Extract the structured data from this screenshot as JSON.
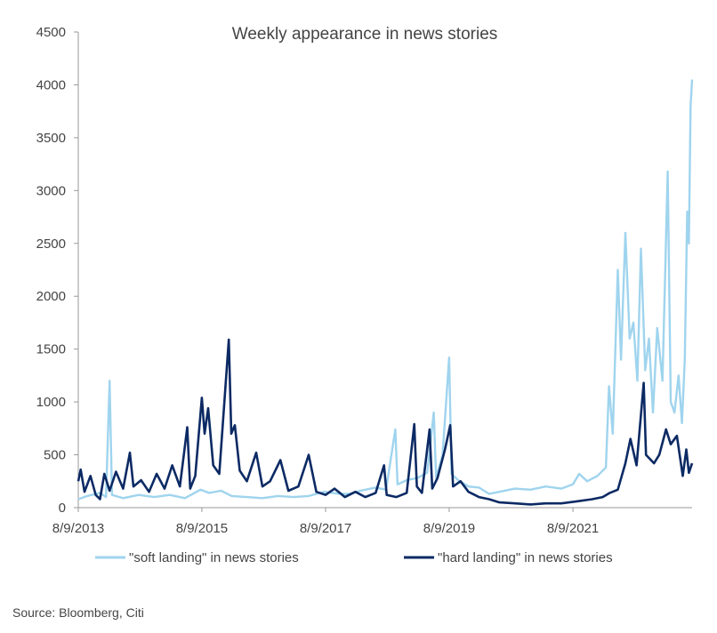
{
  "chart_data": {
    "type": "line",
    "title": "Weekly appearance in news stories",
    "xlabel": "",
    "ylabel": "",
    "ylim": [
      0,
      4500
    ],
    "y_ticks": [
      0,
      500,
      1000,
      1500,
      2000,
      2500,
      3000,
      3500,
      4000,
      4500
    ],
    "x_ticks": [
      "8/9/2013",
      "8/9/2015",
      "8/9/2017",
      "8/9/2019",
      "8/9/2021"
    ],
    "x_range": [
      "2013-08-09",
      "2023-07-14"
    ],
    "grid": false,
    "legend_position": "bottom",
    "series": [
      {
        "name": "\"soft landing\" in news stories",
        "color": "#9fd4ee",
        "points": [
          [
            "2013-08-09",
            80
          ],
          [
            "2013-10-01",
            110
          ],
          [
            "2013-12-15",
            140
          ],
          [
            "2014-01-20",
            100
          ],
          [
            "2014-02-10",
            1200
          ],
          [
            "2014-02-24",
            120
          ],
          [
            "2014-05-01",
            90
          ],
          [
            "2014-08-01",
            120
          ],
          [
            "2014-11-01",
            100
          ],
          [
            "2015-02-01",
            120
          ],
          [
            "2015-05-01",
            90
          ],
          [
            "2015-08-01",
            170
          ],
          [
            "2015-09-20",
            140
          ],
          [
            "2015-12-01",
            160
          ],
          [
            "2016-02-01",
            110
          ],
          [
            "2016-05-01",
            100
          ],
          [
            "2016-08-01",
            90
          ],
          [
            "2016-11-01",
            110
          ],
          [
            "2017-02-01",
            100
          ],
          [
            "2017-05-01",
            110
          ],
          [
            "2017-08-01",
            150
          ],
          [
            "2017-11-01",
            130
          ],
          [
            "2018-01-01",
            130
          ],
          [
            "2018-03-01",
            160
          ],
          [
            "2018-06-01",
            190
          ],
          [
            "2018-08-01",
            170
          ],
          [
            "2018-09-25",
            740
          ],
          [
            "2018-10-08",
            220
          ],
          [
            "2018-12-01",
            260
          ],
          [
            "2019-02-01",
            280
          ],
          [
            "2019-04-01",
            330
          ],
          [
            "2019-05-10",
            900
          ],
          [
            "2019-05-24",
            280
          ],
          [
            "2019-07-01",
            500
          ],
          [
            "2019-08-09",
            1420
          ],
          [
            "2019-08-23",
            320
          ],
          [
            "2019-10-01",
            260
          ],
          [
            "2019-12-01",
            200
          ],
          [
            "2020-02-01",
            190
          ],
          [
            "2020-04-01",
            130
          ],
          [
            "2020-06-01",
            150
          ],
          [
            "2020-09-01",
            180
          ],
          [
            "2020-12-01",
            170
          ],
          [
            "2021-03-01",
            200
          ],
          [
            "2021-06-01",
            180
          ],
          [
            "2021-08-09",
            220
          ],
          [
            "2021-09-15",
            320
          ],
          [
            "2021-11-01",
            250
          ],
          [
            "2022-01-01",
            300
          ],
          [
            "2022-02-20",
            380
          ],
          [
            "2022-03-10",
            1150
          ],
          [
            "2022-04-01",
            700
          ],
          [
            "2022-05-01",
            2250
          ],
          [
            "2022-05-20",
            1400
          ],
          [
            "2022-06-15",
            2600
          ],
          [
            "2022-07-10",
            1600
          ],
          [
            "2022-08-01",
            1750
          ],
          [
            "2022-08-25",
            1200
          ],
          [
            "2022-09-15",
            2450
          ],
          [
            "2022-10-10",
            1300
          ],
          [
            "2022-11-01",
            1600
          ],
          [
            "2022-11-25",
            900
          ],
          [
            "2022-12-20",
            1700
          ],
          [
            "2023-01-20",
            1200
          ],
          [
            "2023-02-20",
            3180
          ],
          [
            "2023-03-10",
            1000
          ],
          [
            "2023-04-01",
            900
          ],
          [
            "2023-04-25",
            1250
          ],
          [
            "2023-05-15",
            800
          ],
          [
            "2023-06-01",
            1400
          ],
          [
            "2023-06-15",
            2800
          ],
          [
            "2023-06-25",
            2500
          ],
          [
            "2023-07-05",
            3800
          ],
          [
            "2023-07-14",
            4050
          ]
        ]
      },
      {
        "name": "\"hard landing\" in news stories",
        "color": "#0c2a64",
        "points": [
          [
            "2013-08-09",
            250
          ],
          [
            "2013-08-23",
            360
          ],
          [
            "2013-09-15",
            150
          ],
          [
            "2013-10-20",
            300
          ],
          [
            "2013-11-20",
            120
          ],
          [
            "2013-12-15",
            80
          ],
          [
            "2014-01-10",
            320
          ],
          [
            "2014-02-10",
            160
          ],
          [
            "2014-03-20",
            340
          ],
          [
            "2014-05-01",
            180
          ],
          [
            "2014-06-10",
            520
          ],
          [
            "2014-07-01",
            200
          ],
          [
            "2014-08-15",
            260
          ],
          [
            "2014-10-01",
            150
          ],
          [
            "2014-11-15",
            320
          ],
          [
            "2015-01-01",
            180
          ],
          [
            "2015-02-15",
            400
          ],
          [
            "2015-04-01",
            200
          ],
          [
            "2015-05-15",
            760
          ],
          [
            "2015-06-01",
            180
          ],
          [
            "2015-07-01",
            300
          ],
          [
            "2015-08-09",
            1040
          ],
          [
            "2015-08-25",
            700
          ],
          [
            "2015-09-15",
            940
          ],
          [
            "2015-10-15",
            400
          ],
          [
            "2015-11-20",
            320
          ],
          [
            "2016-01-15",
            1590
          ],
          [
            "2016-01-30",
            700
          ],
          [
            "2016-02-20",
            780
          ],
          [
            "2016-03-20",
            350
          ],
          [
            "2016-05-01",
            250
          ],
          [
            "2016-06-25",
            520
          ],
          [
            "2016-08-01",
            200
          ],
          [
            "2016-09-15",
            250
          ],
          [
            "2016-11-15",
            450
          ],
          [
            "2017-01-01",
            160
          ],
          [
            "2017-03-01",
            200
          ],
          [
            "2017-05-01",
            500
          ],
          [
            "2017-06-15",
            150
          ],
          [
            "2017-08-09",
            120
          ],
          [
            "2017-10-01",
            180
          ],
          [
            "2017-12-01",
            100
          ],
          [
            "2018-02-01",
            150
          ],
          [
            "2018-04-01",
            100
          ],
          [
            "2018-06-01",
            140
          ],
          [
            "2018-07-20",
            400
          ],
          [
            "2018-08-05",
            120
          ],
          [
            "2018-10-01",
            100
          ],
          [
            "2018-12-01",
            140
          ],
          [
            "2019-01-15",
            790
          ],
          [
            "2019-01-30",
            200
          ],
          [
            "2019-03-01",
            140
          ],
          [
            "2019-04-15",
            740
          ],
          [
            "2019-05-01",
            180
          ],
          [
            "2019-06-01",
            280
          ],
          [
            "2019-07-15",
            550
          ],
          [
            "2019-08-15",
            780
          ],
          [
            "2019-09-01",
            200
          ],
          [
            "2019-10-15",
            250
          ],
          [
            "2019-12-01",
            150
          ],
          [
            "2020-02-01",
            100
          ],
          [
            "2020-04-01",
            80
          ],
          [
            "2020-06-01",
            50
          ],
          [
            "2020-09-01",
            40
          ],
          [
            "2020-12-01",
            30
          ],
          [
            "2021-03-01",
            40
          ],
          [
            "2021-06-01",
            40
          ],
          [
            "2021-09-01",
            60
          ],
          [
            "2021-12-01",
            80
          ],
          [
            "2022-02-01",
            100
          ],
          [
            "2022-03-15",
            140
          ],
          [
            "2022-05-01",
            170
          ],
          [
            "2022-06-15",
            420
          ],
          [
            "2022-07-15",
            650
          ],
          [
            "2022-08-20",
            400
          ],
          [
            "2022-10-01",
            1180
          ],
          [
            "2022-10-15",
            500
          ],
          [
            "2022-12-01",
            420
          ],
          [
            "2023-01-01",
            500
          ],
          [
            "2023-02-10",
            740
          ],
          [
            "2023-03-10",
            600
          ],
          [
            "2023-04-15",
            680
          ],
          [
            "2023-05-20",
            300
          ],
          [
            "2023-06-10",
            550
          ],
          [
            "2023-06-25",
            330
          ],
          [
            "2023-07-14",
            420
          ]
        ]
      }
    ]
  },
  "source": "Source: Bloomberg, Citi"
}
